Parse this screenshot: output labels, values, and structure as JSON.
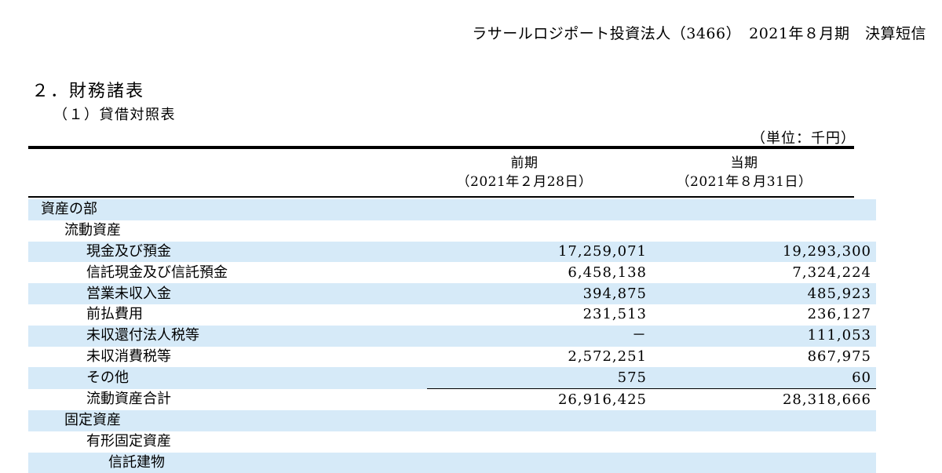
{
  "header": {
    "company": "ラサールロジポート投資法人（3466）",
    "period": "2021年８月期",
    "report": "決算短信"
  },
  "section_title": "２．財務諸表",
  "subsection_title": "（１）貸借対照表",
  "unit_note": "（単位：千円）",
  "columns": {
    "previous": {
      "label": "前期",
      "date": "（2021年２月28日）"
    },
    "current": {
      "label": "当期",
      "date": "（2021年８月31日）"
    }
  },
  "rows": [
    {
      "label": "資産の部",
      "previous": "",
      "current": "",
      "level": 0,
      "shaded": true,
      "total": false
    },
    {
      "label": "流動資産",
      "previous": "",
      "current": "",
      "level": 1,
      "shaded": false,
      "total": false
    },
    {
      "label": "現金及び預金",
      "previous": "17,259,071",
      "current": "19,293,300",
      "level": 2,
      "shaded": true,
      "total": false
    },
    {
      "label": "信託現金及び信託預金",
      "previous": "6,458,138",
      "current": "7,324,224",
      "level": 2,
      "shaded": false,
      "total": false
    },
    {
      "label": "営業未収入金",
      "previous": "394,875",
      "current": "485,923",
      "level": 2,
      "shaded": true,
      "total": false
    },
    {
      "label": "前払費用",
      "previous": "231,513",
      "current": "236,127",
      "level": 2,
      "shaded": false,
      "total": false
    },
    {
      "label": "未収還付法人税等",
      "previous": "－",
      "current": "111,053",
      "level": 2,
      "shaded": true,
      "total": false
    },
    {
      "label": "未収消費税等",
      "previous": "2,572,251",
      "current": "867,975",
      "level": 2,
      "shaded": false,
      "total": false
    },
    {
      "label": "その他",
      "previous": "575",
      "current": "60",
      "level": 2,
      "shaded": true,
      "total": false
    },
    {
      "label": "流動資産合計",
      "previous": "26,916,425",
      "current": "28,318,666",
      "level": 2,
      "shaded": false,
      "total": true
    },
    {
      "label": "固定資産",
      "previous": "",
      "current": "",
      "level": 1,
      "shaded": true,
      "total": false
    },
    {
      "label": "有形固定資産",
      "previous": "",
      "current": "",
      "level": 2,
      "shaded": false,
      "total": false
    },
    {
      "label": "信託建物",
      "previous": "",
      "current": "",
      "level": 3,
      "shaded": true,
      "total": false
    }
  ]
}
